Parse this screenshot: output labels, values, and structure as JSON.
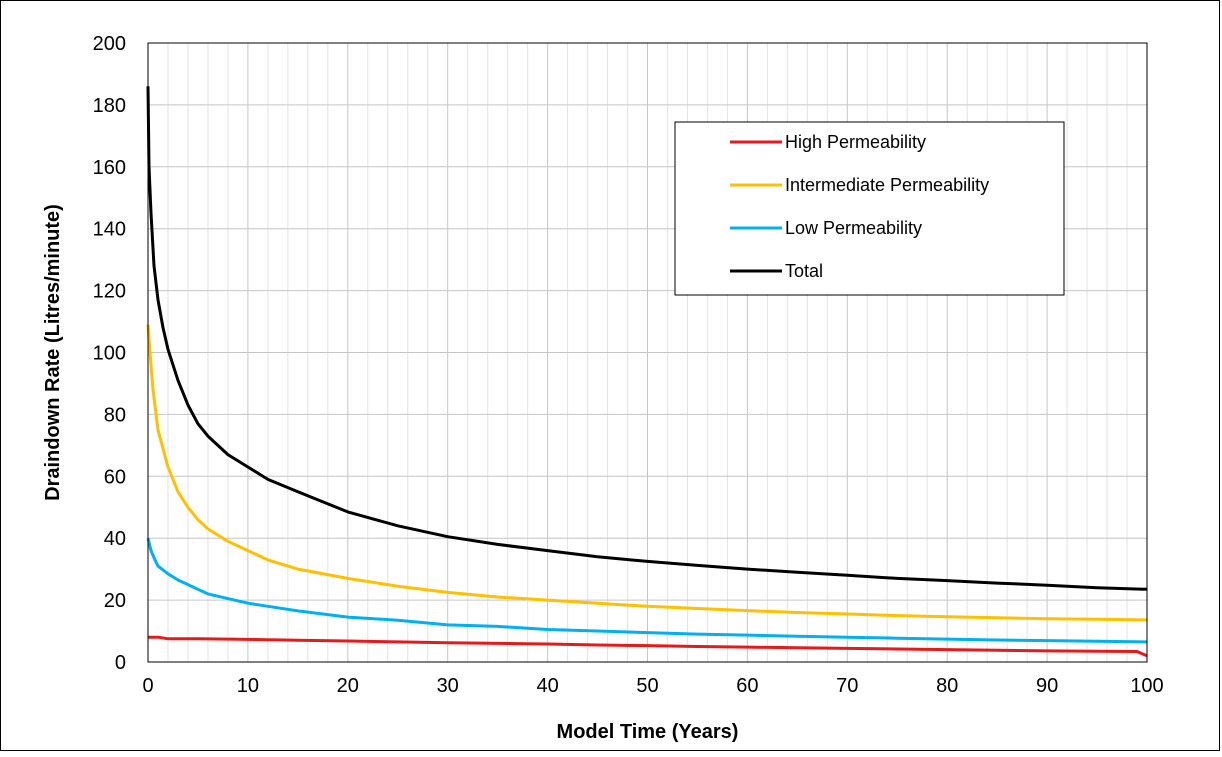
{
  "chart_data": {
    "type": "line",
    "title": "",
    "xlabel": "Model Time (Years)",
    "ylabel": "Draindown Rate (Litres/minute)",
    "xlim": [
      0,
      100
    ],
    "ylim": [
      0,
      200
    ],
    "x_ticks": [
      0,
      10,
      20,
      30,
      40,
      50,
      60,
      70,
      80,
      90,
      100
    ],
    "y_ticks": [
      0,
      20,
      40,
      60,
      80,
      100,
      120,
      140,
      160,
      180,
      200
    ],
    "grid": {
      "major": true,
      "minor_x": true,
      "minor_x_step": 2
    },
    "legend_position": "top-right",
    "series": [
      {
        "name": "High Permeability",
        "color": "#e41a1c",
        "points": [
          [
            0,
            8
          ],
          [
            1,
            8
          ],
          [
            2,
            7.5
          ],
          [
            5,
            7.5
          ],
          [
            10,
            7.3
          ],
          [
            15,
            7
          ],
          [
            20,
            6.8
          ],
          [
            25,
            6.5
          ],
          [
            30,
            6.2
          ],
          [
            35,
            6
          ],
          [
            40,
            5.8
          ],
          [
            45,
            5.5
          ],
          [
            50,
            5.3
          ],
          [
            55,
            5
          ],
          [
            60,
            4.8
          ],
          [
            65,
            4.6
          ],
          [
            70,
            4.4
          ],
          [
            75,
            4.2
          ],
          [
            80,
            4
          ],
          [
            85,
            3.8
          ],
          [
            90,
            3.6
          ],
          [
            95,
            3.5
          ],
          [
            99,
            3.4
          ],
          [
            100,
            2
          ]
        ]
      },
      {
        "name": "Intermediate Permeability",
        "color": "#ffc000",
        "points": [
          [
            0,
            109
          ],
          [
            0.2,
            100
          ],
          [
            0.5,
            88
          ],
          [
            1,
            75
          ],
          [
            2,
            63
          ],
          [
            3,
            55
          ],
          [
            4,
            50
          ],
          [
            5,
            46
          ],
          [
            6,
            43
          ],
          [
            8,
            39
          ],
          [
            10,
            36
          ],
          [
            12,
            33
          ],
          [
            15,
            30
          ],
          [
            20,
            27
          ],
          [
            25,
            24.5
          ],
          [
            30,
            22.5
          ],
          [
            35,
            21
          ],
          [
            40,
            20
          ],
          [
            45,
            19
          ],
          [
            50,
            18
          ],
          [
            55,
            17.3
          ],
          [
            60,
            16.6
          ],
          [
            65,
            16
          ],
          [
            70,
            15.5
          ],
          [
            75,
            15
          ],
          [
            80,
            14.6
          ],
          [
            85,
            14.3
          ],
          [
            90,
            14
          ],
          [
            95,
            13.8
          ],
          [
            100,
            13.6
          ]
        ]
      },
      {
        "name": "Low Permeability",
        "color": "#00b0f0",
        "points": [
          [
            0,
            40
          ],
          [
            0.3,
            36
          ],
          [
            0.7,
            33
          ],
          [
            1,
            31
          ],
          [
            2,
            28.5
          ],
          [
            3,
            26.5
          ],
          [
            4,
            25
          ],
          [
            5,
            23.5
          ],
          [
            6,
            22
          ],
          [
            8,
            20.5
          ],
          [
            10,
            19
          ],
          [
            12,
            18
          ],
          [
            15,
            16.5
          ],
          [
            20,
            14.5
          ],
          [
            25,
            13.5
          ],
          [
            30,
            12
          ],
          [
            35,
            11.5
          ],
          [
            40,
            10.5
          ],
          [
            45,
            10
          ],
          [
            50,
            9.5
          ],
          [
            55,
            9
          ],
          [
            60,
            8.7
          ],
          [
            65,
            8.3
          ],
          [
            70,
            8
          ],
          [
            75,
            7.7
          ],
          [
            80,
            7.4
          ],
          [
            85,
            7.1
          ],
          [
            90,
            6.9
          ],
          [
            95,
            6.7
          ],
          [
            100,
            6.5
          ]
        ]
      },
      {
        "name": "Total",
        "color": "#000000",
        "points": [
          [
            0,
            186
          ],
          [
            0.1,
            160
          ],
          [
            0.3,
            145
          ],
          [
            0.6,
            128
          ],
          [
            1,
            117
          ],
          [
            1.5,
            108
          ],
          [
            2,
            101
          ],
          [
            3,
            91
          ],
          [
            4,
            83
          ],
          [
            5,
            77
          ],
          [
            6,
            73
          ],
          [
            8,
            67
          ],
          [
            10,
            63
          ],
          [
            12,
            59
          ],
          [
            15,
            55
          ],
          [
            20,
            48.5
          ],
          [
            25,
            44
          ],
          [
            30,
            40.5
          ],
          [
            35,
            38
          ],
          [
            40,
            36
          ],
          [
            45,
            34
          ],
          [
            50,
            32.5
          ],
          [
            55,
            31.2
          ],
          [
            60,
            30
          ],
          [
            65,
            29
          ],
          [
            70,
            28
          ],
          [
            75,
            27
          ],
          [
            80,
            26.3
          ],
          [
            85,
            25.5
          ],
          [
            90,
            24.8
          ],
          [
            95,
            24
          ],
          [
            100,
            23.5
          ]
        ]
      }
    ]
  }
}
